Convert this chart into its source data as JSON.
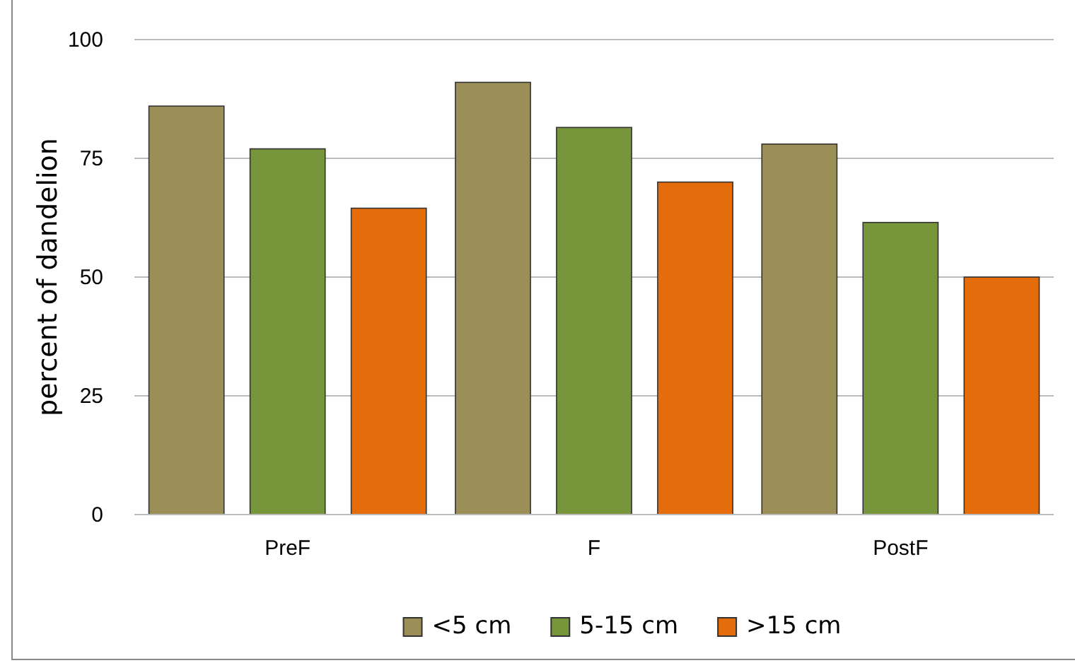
{
  "chart_data": {
    "type": "bar",
    "ylabel": "percent of dandelion",
    "categories": [
      "PreF",
      "F",
      "PostF"
    ],
    "series": [
      {
        "name": "<5 cm",
        "color": "#9b8f57",
        "values": [
          86,
          91,
          78
        ]
      },
      {
        "name": "5-15 cm",
        "color": "#77963c",
        "values": [
          77,
          81.5,
          61.5
        ]
      },
      {
        "name": ">15 cm",
        "color": "#e46c0a",
        "values": [
          64.5,
          70,
          50
        ]
      }
    ],
    "ylim": [
      0,
      100
    ],
    "yticks": [
      0,
      25,
      50,
      75,
      100
    ],
    "grid": "y",
    "legend": "bottom"
  }
}
